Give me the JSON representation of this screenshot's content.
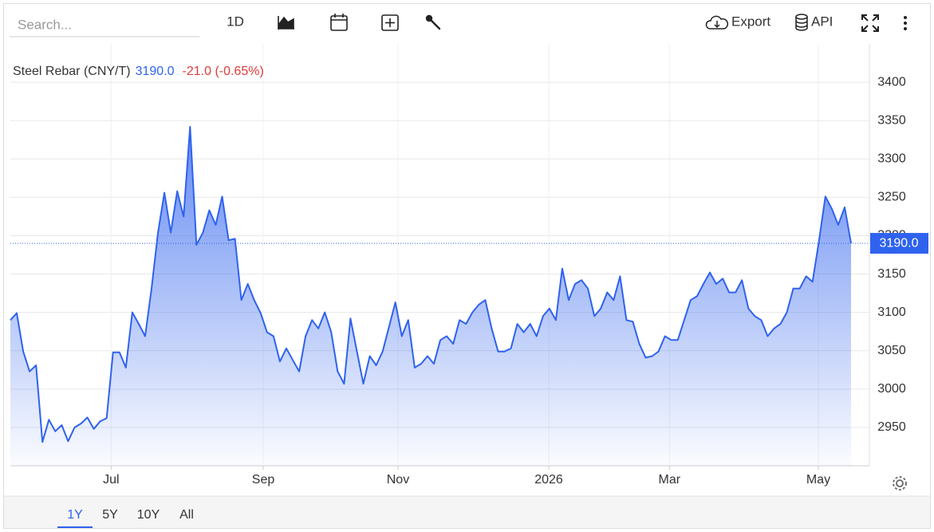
{
  "toolbar": {
    "search_placeholder": "Search...",
    "interval": "1D",
    "export": "Export",
    "api": "API"
  },
  "header": {
    "name": "Steel Rebar (CNY/T)",
    "price": "3190.0",
    "change": "-21.0 (-0.65%)"
  },
  "ranges": [
    "1Y",
    "5Y",
    "10Y",
    "All"
  ],
  "chart_data": {
    "type": "area",
    "series": [
      {
        "name": "Steel Rebar (CNY/T)",
        "color": "#2f62ee",
        "values": [
          3090,
          3099,
          3049,
          3023,
          3031,
          2931,
          2960,
          2945,
          2953,
          2932,
          2950,
          2955,
          2963,
          2948,
          2958,
          2962,
          3048,
          3048,
          3028,
          3100,
          3085,
          3069,
          3131,
          3204,
          3256,
          3204,
          3258,
          3225,
          3342,
          3188,
          3204,
          3233,
          3214,
          3251,
          3194,
          3196,
          3116,
          3137,
          3116,
          3099,
          3074,
          3069,
          3036,
          3053,
          3038,
          3023,
          3069,
          3090,
          3079,
          3100,
          3074,
          3023,
          3007,
          3092,
          3049,
          3007,
          3043,
          3031,
          3049,
          3081,
          3113,
          3069,
          3090,
          3028,
          3033,
          3043,
          3033,
          3064,
          3069,
          3059,
          3090,
          3085,
          3100,
          3110,
          3116,
          3079,
          3049,
          3049,
          3053,
          3085,
          3074,
          3085,
          3069,
          3095,
          3105,
          3090,
          3157,
          3116,
          3137,
          3142,
          3131,
          3095,
          3105,
          3126,
          3116,
          3147,
          3090,
          3088,
          3059,
          3041,
          3043,
          3049,
          3069,
          3064,
          3064,
          3090,
          3116,
          3121,
          3137,
          3152,
          3137,
          3144,
          3126,
          3126,
          3142,
          3105,
          3095,
          3090,
          3069,
          3079,
          3085,
          3100,
          3131,
          3131,
          3147,
          3140,
          3193,
          3251,
          3235,
          3214,
          3237,
          3190
        ]
      }
    ],
    "xlim": [
      0,
      131
    ],
    "xticks": [
      {
        "value": 15.7,
        "label": "Jul"
      },
      {
        "value": 39.4,
        "label": "Sep"
      },
      {
        "value": 60.4,
        "label": "Nov"
      },
      {
        "value": 83.9,
        "label": "2026"
      },
      {
        "value": 102.7,
        "label": "Mar"
      },
      {
        "value": 125.9,
        "label": "May"
      }
    ],
    "ylim": [
      2900,
      3450
    ],
    "yticks": [
      2950,
      3000,
      3050,
      3100,
      3150,
      3200,
      3250,
      3300,
      3350,
      3400
    ],
    "grid": true
  }
}
